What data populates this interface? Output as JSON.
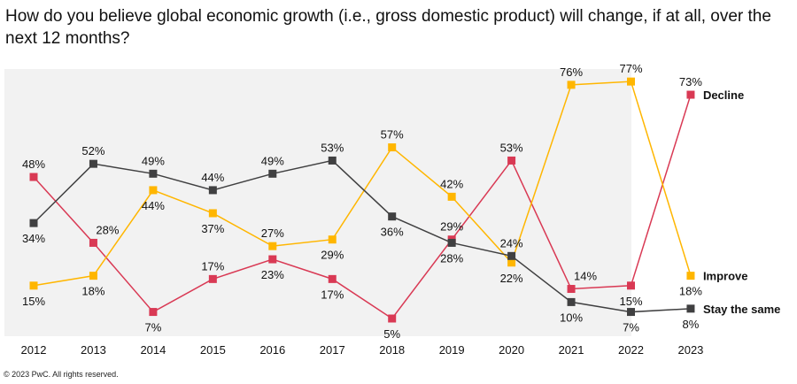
{
  "footer": "© 2023 PwC. All rights reserved.",
  "chart_data": {
    "type": "line",
    "title": "How do you believe global economic growth (i.e., gross domestic product) will change, if at all, over the next 12 months?",
    "categories": [
      "2012",
      "2013",
      "2014",
      "2015",
      "2016",
      "2017",
      "2018",
      "2019",
      "2020",
      "2021",
      "2022",
      "2023"
    ],
    "ylim": [
      0,
      80
    ],
    "unit": "%",
    "grid": false,
    "legend": "right (end-of-line labels)",
    "series": [
      {
        "name": "Decline",
        "color": "#d93954",
        "values": [
          48,
          28,
          7,
          17,
          23,
          17,
          5,
          29,
          53,
          14,
          15,
          73
        ]
      },
      {
        "name": "Improve",
        "color": "#ffb600",
        "values": [
          15,
          18,
          44,
          37,
          27,
          29,
          57,
          42,
          22,
          76,
          77,
          18
        ]
      },
      {
        "name": "Stay the same",
        "color": "#404041",
        "values": [
          34,
          52,
          49,
          44,
          49,
          53,
          36,
          28,
          24,
          10,
          7,
          8
        ]
      }
    ]
  }
}
